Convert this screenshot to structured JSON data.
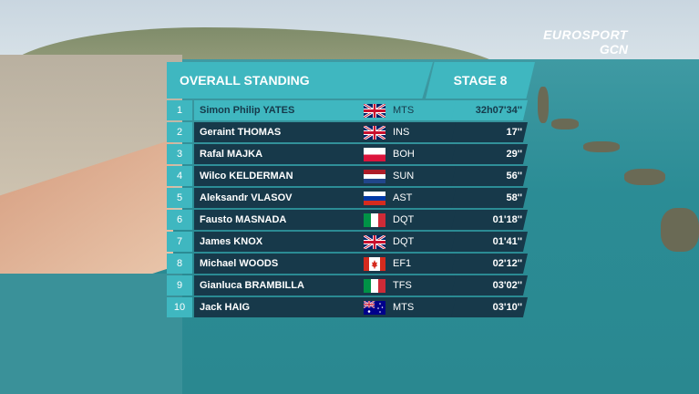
{
  "brand": {
    "line1": "EUROSPORT",
    "line2": "GCN"
  },
  "header": {
    "title": "OVERALL STANDING",
    "stage": "STAGE 8"
  },
  "rows": [
    {
      "pos": "1",
      "name": "Simon Philip YATES",
      "flag": "uk-flag-icon",
      "team": "MTS",
      "time": "32h07'34''"
    },
    {
      "pos": "2",
      "name": "Geraint THOMAS",
      "flag": "uk-flag-icon",
      "team": "INS",
      "time": "17''"
    },
    {
      "pos": "3",
      "name": "Rafal MAJKA",
      "flag": "poland-flag-icon",
      "team": "BOH",
      "time": "29''"
    },
    {
      "pos": "4",
      "name": "Wilco KELDERMAN",
      "flag": "netherlands-flag-icon",
      "team": "SUN",
      "time": "56''"
    },
    {
      "pos": "5",
      "name": "Aleksandr VLASOV",
      "flag": "russia-flag-icon",
      "team": "AST",
      "time": "58''"
    },
    {
      "pos": "6",
      "name": "Fausto MASNADA",
      "flag": "italy-flag-icon",
      "team": "DQT",
      "time": "01'18''"
    },
    {
      "pos": "7",
      "name": "James KNOX",
      "flag": "uk-flag-icon",
      "team": "DQT",
      "time": "01'41''"
    },
    {
      "pos": "8",
      "name": "Michael WOODS",
      "flag": "canada-flag-icon",
      "team": "EF1",
      "time": "02'12''"
    },
    {
      "pos": "9",
      "name": "Gianluca BRAMBILLA",
      "flag": "italy-flag-icon",
      "team": "TFS",
      "time": "03'02''"
    },
    {
      "pos": "10",
      "name": "Jack HAIG",
      "flag": "australia-flag-icon",
      "team": "MTS",
      "time": "03'10''"
    }
  ]
}
